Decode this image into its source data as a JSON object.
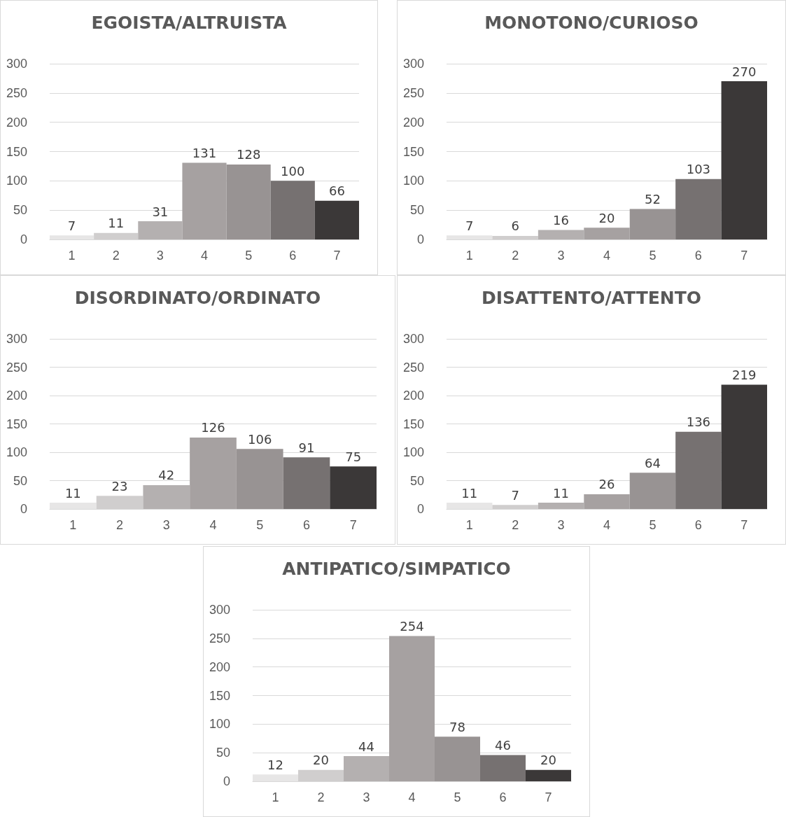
{
  "chart_data": [
    {
      "type": "bar",
      "title": "EGOISTA/ALTRUISTA",
      "categories": [
        "1",
        "2",
        "3",
        "4",
        "5",
        "6",
        "7"
      ],
      "values": [
        7,
        11,
        31,
        131,
        128,
        100,
        66
      ],
      "colors": [
        "#e7e6e6",
        "#d0cece",
        "#b4b0b0",
        "#a6a1a1",
        "#989393",
        "#767171",
        "#3b3838"
      ],
      "ylim": [
        0,
        300
      ],
      "yticks": [
        0,
        50,
        100,
        150,
        200,
        250,
        300
      ],
      "grid": "y",
      "data_labels": true
    },
    {
      "type": "bar",
      "title": "MONOTONO/CURIOSO",
      "categories": [
        "1",
        "2",
        "3",
        "4",
        "5",
        "6",
        "7"
      ],
      "values": [
        7,
        6,
        16,
        20,
        52,
        103,
        270
      ],
      "colors": [
        "#e7e6e6",
        "#d0cece",
        "#b4b0b0",
        "#a6a1a1",
        "#989393",
        "#767171",
        "#3b3838"
      ],
      "ylim": [
        0,
        300
      ],
      "yticks": [
        0,
        50,
        100,
        150,
        200,
        250,
        300
      ],
      "grid": "y",
      "data_labels": true
    },
    {
      "type": "bar",
      "title": "DISORDINATO/ORDINATO",
      "categories": [
        "1",
        "2",
        "3",
        "4",
        "5",
        "6",
        "7"
      ],
      "values": [
        11,
        23,
        42,
        126,
        106,
        91,
        75
      ],
      "colors": [
        "#e7e6e6",
        "#d0cece",
        "#b4b0b0",
        "#a6a1a1",
        "#989393",
        "#767171",
        "#3b3838"
      ],
      "ylim": [
        0,
        300
      ],
      "yticks": [
        0,
        50,
        100,
        150,
        200,
        250,
        300
      ],
      "grid": "y",
      "data_labels": true
    },
    {
      "type": "bar",
      "title": "DISATTENTO/ATTENTO",
      "categories": [
        "1",
        "2",
        "3",
        "4",
        "5",
        "6",
        "7"
      ],
      "values": [
        11,
        7,
        11,
        26,
        64,
        136,
        219
      ],
      "colors": [
        "#e7e6e6",
        "#d0cece",
        "#b4b0b0",
        "#a6a1a1",
        "#989393",
        "#767171",
        "#3b3838"
      ],
      "ylim": [
        0,
        300
      ],
      "yticks": [
        0,
        50,
        100,
        150,
        200,
        250,
        300
      ],
      "grid": "y",
      "data_labels": true
    },
    {
      "type": "bar",
      "title": "ANTIPATICO/SIMPATICO",
      "categories": [
        "1",
        "2",
        "3",
        "4",
        "5",
        "6",
        "7"
      ],
      "values": [
        12,
        20,
        44,
        254,
        78,
        46,
        20
      ],
      "colors": [
        "#e7e6e6",
        "#d0cece",
        "#b4b0b0",
        "#a6a1a1",
        "#989393",
        "#767171",
        "#3b3838"
      ],
      "ylim": [
        0,
        300
      ],
      "yticks": [
        0,
        50,
        100,
        150,
        200,
        250,
        300
      ],
      "grid": "y",
      "data_labels": true
    }
  ]
}
